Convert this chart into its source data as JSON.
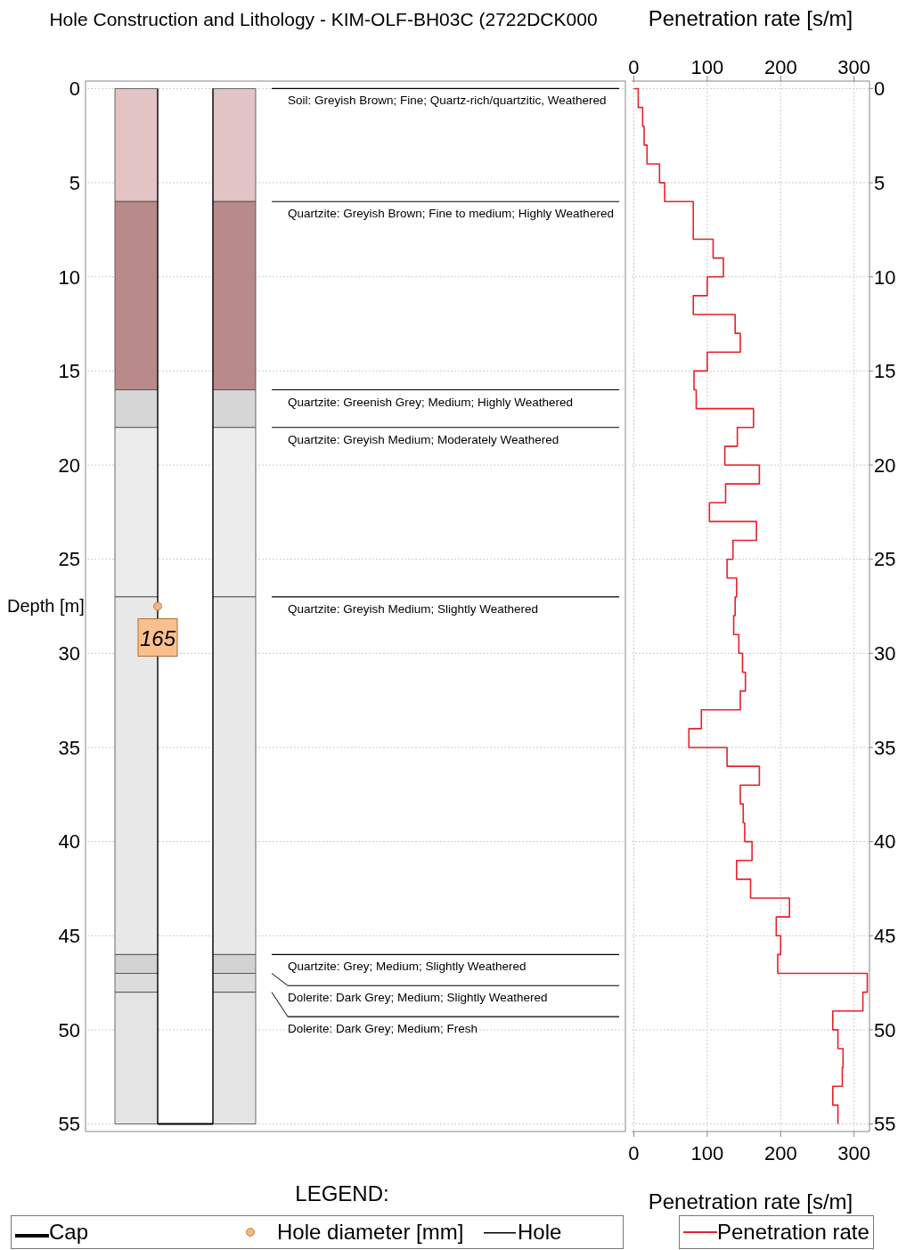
{
  "chart_data": [
    {
      "type": "bar",
      "stacked": true,
      "title": "Hole Construction and Lithology - KIM-OLF-BH03C (2722DCK000",
      "ylabel": "Depth [m]",
      "categories": [
        null,
        null
      ],
      "ylim": [
        55.4,
        -0.4
      ],
      "yticks": [
        0,
        5,
        10,
        15,
        20,
        25,
        30,
        35,
        40,
        45,
        50,
        55
      ],
      "grid": "y",
      "tick_labels": "y",
      "legend_title": "LEGEND:",
      "series": [
        {
          "name": "Soil: Greyish Brown; Fine; Quartz-rich/quartzitic, Weathered",
          "color": "#e2c4c4",
          "values": [
            6,
            6
          ]
        },
        {
          "name": "Quartzite: Greyish Brown; Fine to medium; Highly Weathered",
          "color": "#b98a8a",
          "values": [
            10,
            10
          ]
        },
        {
          "name": "Quartzite: Greenish Grey; Medium; Highly Weathered",
          "color": "#d6d6d6",
          "values": [
            2,
            2
          ]
        },
        {
          "name": "Quartzite: Greyish Medium; Moderately Weathered",
          "color": "#ececec",
          "values": [
            9,
            9
          ]
        },
        {
          "name": "Quartzite: Greyish Medium; Slightly Weathered",
          "color": "#e8e8e8",
          "values": [
            19,
            19
          ]
        },
        {
          "name": "Quartzite: Grey; Medium; Slightly Weathered",
          "color": "#d2d2d2",
          "values": [
            1,
            1
          ]
        },
        {
          "name": "Dolerite: Dark Grey; Medium; Slightly Weathered",
          "color": "#dcdcdc",
          "values": [
            1,
            1
          ]
        },
        {
          "name": "Dolerite: Dark Grey; Medium; Fresh",
          "color": "#e4e4e4",
          "values": [
            7,
            7
          ]
        }
      ],
      "annotations": [
        {
          "text": "165",
          "y": 27.5
        },
        "Cap",
        "Hole diameter [mm]",
        "Hole"
      ]
    },
    {
      "type": "line",
      "xlabel": "Penetration rate [s/m]",
      "x2label": "Penetration rate [s/m]",
      "xlim": [
        -3,
        321
      ],
      "xticks": [
        0,
        100,
        200,
        300
      ],
      "x2lim": [
        -3,
        321
      ],
      "x2ticks": [
        0,
        100,
        200,
        300
      ],
      "ylim": [
        55.4,
        -0.4
      ],
      "yticks": [
        0,
        5,
        10,
        15,
        20,
        25,
        30,
        35,
        40,
        45,
        50,
        55
      ],
      "grid": true,
      "legend": "bottom",
      "line_style": "solid",
      "series": [
        {
          "name": "Penetration rate",
          "color": "#e8202a",
          "x": [
            0,
            6,
            6,
            12,
            12,
            14,
            14,
            18,
            18,
            35,
            35,
            42,
            42,
            81,
            81,
            81,
            81,
            108,
            108,
            122,
            122,
            100,
            100,
            81,
            81,
            138,
            138,
            145,
            145,
            100,
            100,
            82,
            82,
            85,
            85,
            163,
            163,
            141,
            141,
            124,
            124,
            171,
            171,
            125,
            125,
            103,
            103,
            167,
            167,
            135,
            135,
            127,
            127,
            140,
            140,
            138,
            138,
            136,
            136,
            143,
            143,
            148,
            148,
            152,
            152,
            145,
            145,
            92,
            92,
            75,
            75,
            127,
            127,
            171,
            171,
            145,
            145,
            149,
            149,
            151,
            151,
            161,
            161,
            140,
            140,
            159,
            159,
            212,
            212,
            194,
            194,
            200,
            200,
            196,
            196,
            318,
            318,
            312,
            312,
            271,
            271,
            278,
            278,
            285,
            285,
            284,
            284,
            271,
            271,
            278,
            278
          ],
          "values": [
            0,
            0,
            1,
            1,
            2,
            2,
            3,
            3,
            4,
            4,
            5,
            5,
            6,
            6,
            7,
            7,
            8,
            8,
            9,
            9,
            10,
            10,
            11,
            11,
            12,
            12,
            13,
            13,
            14,
            14,
            15,
            15,
            16,
            16,
            17,
            17,
            18,
            18,
            19,
            19,
            20,
            20,
            21,
            21,
            22,
            22,
            23,
            23,
            24,
            24,
            25,
            25,
            26,
            26,
            27,
            27,
            28,
            28,
            29,
            29,
            30,
            30,
            31,
            31,
            32,
            32,
            33,
            33,
            34,
            34,
            35,
            35,
            36,
            36,
            37,
            37,
            38,
            38,
            39,
            39,
            40,
            40,
            41,
            41,
            42,
            42,
            43,
            43,
            44,
            44,
            45,
            45,
            46,
            46,
            47,
            47,
            48,
            48,
            49,
            49,
            50,
            50,
            51,
            51,
            52,
            52,
            53,
            53,
            54,
            54,
            55
          ]
        }
      ]
    }
  ]
}
